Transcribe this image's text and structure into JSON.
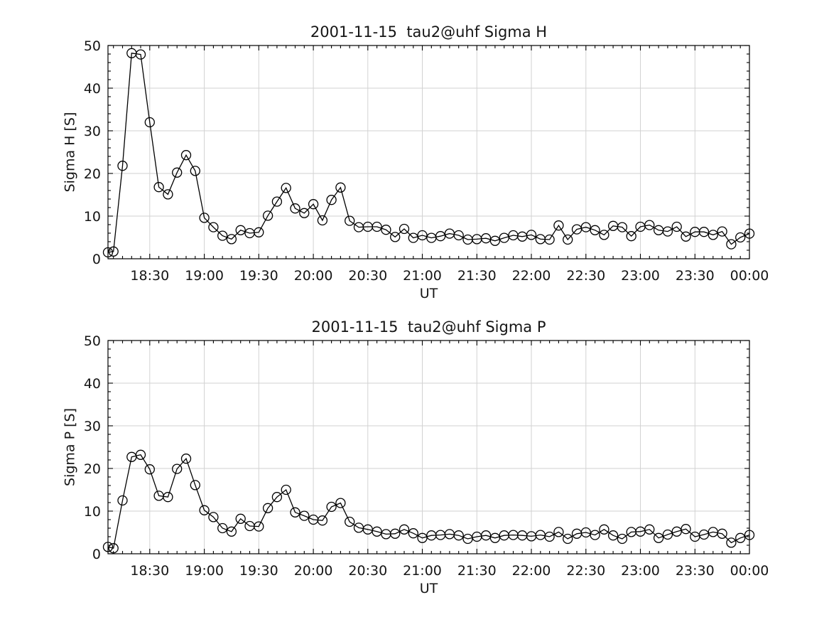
{
  "page": {
    "background": "#ffffff"
  },
  "chart_data": [
    {
      "type": "line",
      "title": "2001-11-15  tau2@uhf Sigma H",
      "xlabel": "UT",
      "ylabel": "Sigma H [S]",
      "ylim": [
        0,
        50
      ],
      "yticks": [
        0,
        10,
        20,
        30,
        40,
        50
      ],
      "y_minor_interval": 2,
      "x_minor_interval_minutes": 5,
      "xtick_labels": [
        "18:30",
        "19:00",
        "19:30",
        "20:00",
        "20:30",
        "21:00",
        "21:30",
        "22:00",
        "22:30",
        "23:00",
        "23:30",
        "00:00"
      ],
      "grid": "on",
      "legend": "none",
      "marker": "open-circle",
      "colors": {
        "line": "#000000",
        "axis": "#000000",
        "grid": "#d2d2d2",
        "text": "#151515"
      },
      "x": [
        "18:07",
        "18:10",
        "18:15",
        "18:20",
        "18:25",
        "18:30",
        "18:35",
        "18:40",
        "18:45",
        "18:50",
        "18:55",
        "19:00",
        "19:05",
        "19:10",
        "19:15",
        "19:20",
        "19:25",
        "19:30",
        "19:35",
        "19:40",
        "19:45",
        "19:50",
        "19:55",
        "20:00",
        "20:05",
        "20:10",
        "20:15",
        "20:20",
        "20:25",
        "20:30",
        "20:35",
        "20:40",
        "20:45",
        "20:50",
        "20:55",
        "21:00",
        "21:05",
        "21:10",
        "21:15",
        "21:20",
        "21:25",
        "21:30",
        "21:35",
        "21:40",
        "21:45",
        "21:50",
        "21:55",
        "22:00",
        "22:05",
        "22:10",
        "22:15",
        "22:20",
        "22:25",
        "22:30",
        "22:35",
        "22:40",
        "22:45",
        "22:50",
        "22:55",
        "23:00",
        "23:05",
        "23:10",
        "23:15",
        "23:20",
        "23:25",
        "23:30",
        "23:35",
        "23:40",
        "23:45",
        "23:50",
        "23:55",
        "00:00"
      ],
      "values": [
        1.5,
        1.7,
        21.8,
        48.2,
        47.9,
        32.0,
        16.8,
        15.1,
        20.2,
        24.3,
        20.6,
        9.6,
        7.4,
        5.4,
        4.6,
        6.7,
        6.0,
        6.2,
        10.1,
        13.4,
        16.6,
        11.8,
        10.7,
        12.8,
        9.0,
        13.8,
        16.7,
        8.9,
        7.4,
        7.5,
        7.5,
        6.8,
        5.1,
        7.0,
        4.9,
        5.5,
        4.9,
        5.3,
        5.9,
        5.5,
        4.5,
        4.6,
        4.8,
        4.2,
        4.9,
        5.5,
        5.2,
        5.6,
        4.6,
        4.5,
        7.8,
        4.5,
        6.9,
        7.4,
        6.7,
        5.6,
        7.7,
        7.4,
        5.3,
        7.5,
        7.9,
        6.7,
        6.4,
        7.5,
        5.2,
        6.3,
        6.3,
        5.6,
        6.4,
        3.4,
        5.0,
        5.9
      ]
    },
    {
      "type": "line",
      "title": "2001-11-15  tau2@uhf Sigma P",
      "xlabel": "UT",
      "ylabel": "Sigma P [S]",
      "ylim": [
        0,
        50
      ],
      "yticks": [
        0,
        10,
        20,
        30,
        40,
        50
      ],
      "y_minor_interval": 2,
      "x_minor_interval_minutes": 5,
      "xtick_labels": [
        "18:30",
        "19:00",
        "19:30",
        "20:00",
        "20:30",
        "21:00",
        "21:30",
        "22:00",
        "22:30",
        "23:00",
        "23:30",
        "00:00"
      ],
      "grid": "on",
      "legend": "none",
      "marker": "open-circle",
      "colors": {
        "line": "#000000",
        "axis": "#000000",
        "grid": "#d2d2d2",
        "text": "#151515"
      },
      "x": [
        "18:07",
        "18:10",
        "18:15",
        "18:20",
        "18:25",
        "18:30",
        "18:35",
        "18:40",
        "18:45",
        "18:50",
        "18:55",
        "19:00",
        "19:05",
        "19:10",
        "19:15",
        "19:20",
        "19:25",
        "19:30",
        "19:35",
        "19:40",
        "19:45",
        "19:50",
        "19:55",
        "20:00",
        "20:05",
        "20:10",
        "20:15",
        "20:20",
        "20:25",
        "20:30",
        "20:35",
        "20:40",
        "20:45",
        "20:50",
        "20:55",
        "21:00",
        "21:05",
        "21:10",
        "21:15",
        "21:20",
        "21:25",
        "21:30",
        "21:35",
        "21:40",
        "21:45",
        "21:50",
        "21:55",
        "22:00",
        "22:05",
        "22:10",
        "22:15",
        "22:20",
        "22:25",
        "22:30",
        "22:35",
        "22:40",
        "22:45",
        "22:50",
        "22:55",
        "23:00",
        "23:05",
        "23:10",
        "23:15",
        "23:20",
        "23:25",
        "23:30",
        "23:35",
        "23:40",
        "23:45",
        "23:50",
        "23:55",
        "00:00"
      ],
      "values": [
        1.6,
        1.3,
        12.5,
        22.7,
        23.2,
        19.8,
        13.6,
        13.3,
        19.9,
        22.3,
        16.1,
        10.2,
        8.6,
        6.0,
        5.2,
        8.2,
        6.5,
        6.4,
        10.7,
        13.3,
        15.0,
        9.7,
        8.9,
        8.0,
        7.8,
        11.0,
        11.9,
        7.5,
        6.1,
        5.7,
        5.2,
        4.6,
        4.7,
        5.7,
        4.8,
        3.7,
        4.3,
        4.4,
        4.6,
        4.3,
        3.5,
        4.0,
        4.3,
        3.7,
        4.3,
        4.4,
        4.3,
        4.1,
        4.4,
        4.0,
        5.1,
        3.5,
        4.7,
        5.0,
        4.4,
        5.7,
        4.3,
        3.5,
        5.1,
        5.2,
        5.7,
        3.7,
        4.5,
        5.2,
        5.8,
        4.0,
        4.5,
        5.1,
        4.7,
        2.6,
        3.7,
        4.4
      ]
    }
  ]
}
